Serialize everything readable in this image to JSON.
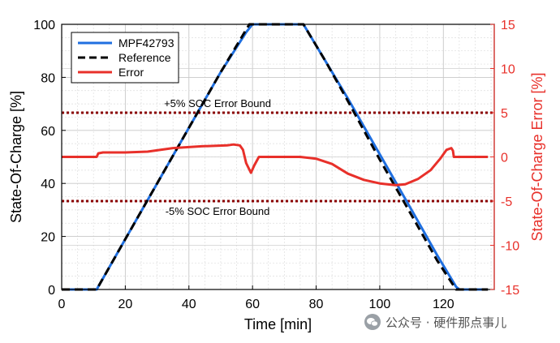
{
  "chart_data": {
    "type": "line",
    "xlabel": "Time [min]",
    "ylabel": "State-Of-Charge [%]",
    "ylabel_right": "State-Of-Charge Error [%]",
    "xlim": [
      0,
      136
    ],
    "ylim": [
      0,
      100
    ],
    "ylim_right": [
      -15,
      15
    ],
    "x_ticks": [
      0,
      20,
      40,
      60,
      80,
      100,
      120
    ],
    "y_ticks": [
      0,
      20,
      40,
      60,
      80,
      100
    ],
    "y_ticks_right": [
      -15,
      -10,
      -5,
      0,
      5,
      10,
      15
    ],
    "grid": true,
    "legend_position": "top-left",
    "series": [
      {
        "name": "MPF42793",
        "axis": "left",
        "color": "#1f6fe0",
        "style": "solid",
        "points": [
          [
            0,
            0
          ],
          [
            11,
            0
          ],
          [
            20,
            19
          ],
          [
            30,
            40
          ],
          [
            40,
            61
          ],
          [
            50,
            82
          ],
          [
            58,
            97
          ],
          [
            60,
            100
          ],
          [
            76,
            100
          ],
          [
            83,
            86
          ],
          [
            90,
            72
          ],
          [
            100,
            51
          ],
          [
            110,
            30
          ],
          [
            118,
            13
          ],
          [
            124,
            1
          ],
          [
            125,
            0
          ],
          [
            134,
            0
          ]
        ]
      },
      {
        "name": "Reference",
        "axis": "left",
        "color": "#000000",
        "style": "dashed",
        "points": [
          [
            0,
            0
          ],
          [
            11,
            0
          ],
          [
            20,
            19
          ],
          [
            30,
            40
          ],
          [
            40,
            61
          ],
          [
            50,
            82
          ],
          [
            59,
            100
          ],
          [
            76,
            100
          ],
          [
            83,
            86
          ],
          [
            90,
            71
          ],
          [
            100,
            49
          ],
          [
            110,
            28
          ],
          [
            118,
            11
          ],
          [
            124,
            0
          ],
          [
            134,
            0
          ]
        ]
      },
      {
        "name": "Error",
        "axis": "right",
        "color": "#e8302a",
        "style": "solid",
        "points": [
          [
            0,
            0
          ],
          [
            11,
            0
          ],
          [
            11.5,
            0.4
          ],
          [
            13,
            0.5
          ],
          [
            20,
            0.5
          ],
          [
            27,
            0.6
          ],
          [
            35,
            1.0
          ],
          [
            44,
            1.2
          ],
          [
            52,
            1.3
          ],
          [
            54,
            1.4
          ],
          [
            56,
            1.3
          ],
          [
            57,
            0.8
          ],
          [
            58,
            -0.7
          ],
          [
            59.5,
            -1.8
          ],
          [
            60.5,
            -1.0
          ],
          [
            62,
            0
          ],
          [
            75,
            0
          ],
          [
            80,
            -0.2
          ],
          [
            85,
            -0.8
          ],
          [
            90,
            -1.9
          ],
          [
            95,
            -2.6
          ],
          [
            100,
            -3.0
          ],
          [
            105,
            -3.2
          ],
          [
            108,
            -3.1
          ],
          [
            112,
            -2.5
          ],
          [
            116,
            -1.5
          ],
          [
            119,
            -0.2
          ],
          [
            121,
            0.8
          ],
          [
            122.5,
            1.0
          ],
          [
            123,
            0.7
          ],
          [
            123.3,
            0
          ],
          [
            134,
            0
          ]
        ]
      }
    ],
    "annotations": [
      {
        "text": "+5% SOC Error Bound",
        "axis": "right",
        "y": 5,
        "color": "#8b0000",
        "style": "dotted"
      },
      {
        "text": "-5% SOC Error Bound",
        "axis": "right",
        "y": -5,
        "color": "#8b0000",
        "style": "dotted"
      }
    ]
  },
  "watermark": {
    "text": "公众号 · 硬件那点事儿",
    "icon": "wechat-icon"
  }
}
